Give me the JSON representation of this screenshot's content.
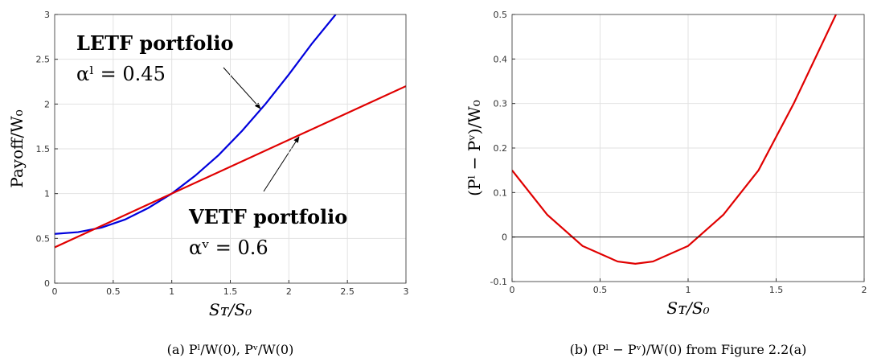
{
  "chart_data": [
    {
      "type": "line",
      "xlabel": "Sᴛ/S₀",
      "ylabel": "Payoff/W₀",
      "caption": "(a) Pˡ/W(0), Pᵛ/W(0)",
      "xlim": [
        0,
        3
      ],
      "ylim": [
        0,
        3
      ],
      "xticks": [
        0,
        0.5,
        1,
        1.5,
        2,
        2.5,
        3
      ],
      "yticks": [
        0,
        0.5,
        1,
        1.5,
        2,
        2.5,
        3
      ],
      "grid": true,
      "annotations": [
        "LETF portfolio",
        "αˡ = 0.45",
        "VETF portfolio",
        "αᵛ = 0.6"
      ],
      "series": [
        {
          "color": "#0000dd",
          "x": [
            0,
            0.2,
            0.4,
            0.6,
            0.8,
            1.0,
            1.2,
            1.4,
            1.6,
            1.8,
            2.0,
            2.2,
            2.4
          ],
          "values": [
            0.55,
            0.57,
            0.62,
            0.71,
            0.84,
            1.0,
            1.2,
            1.43,
            1.7,
            2.0,
            2.33,
            2.68,
            3.0
          ]
        },
        {
          "color": "#e00000",
          "x": [
            0,
            3
          ],
          "values": [
            0.4,
            2.2
          ]
        }
      ]
    },
    {
      "type": "line",
      "xlabel": "Sᴛ/S₀",
      "ylabel": "(Pˡ − Pᵛ)/W₀",
      "caption": "(b) (Pˡ − Pᵛ)/W(0) from Figure 2.2(a)",
      "xlim": [
        0,
        2
      ],
      "ylim": [
        -0.1,
        0.5
      ],
      "xticks": [
        0,
        0.5,
        1,
        1.5,
        2
      ],
      "yticks": [
        -0.1,
        0,
        0.1,
        0.2,
        0.3,
        0.4,
        0.5
      ],
      "grid": true,
      "series": [
        {
          "color": "#e00000",
          "x": [
            0,
            0.2,
            0.4,
            0.6,
            0.7,
            0.8,
            1.0,
            1.2,
            1.4,
            1.6,
            1.84
          ],
          "values": [
            0.15,
            0.05,
            -0.02,
            -0.055,
            -0.06,
            -0.055,
            -0.02,
            0.05,
            0.15,
            0.3,
            0.5
          ]
        },
        {
          "color": "#000000",
          "x": [
            0,
            2
          ],
          "values": [
            0,
            0
          ]
        }
      ]
    }
  ]
}
